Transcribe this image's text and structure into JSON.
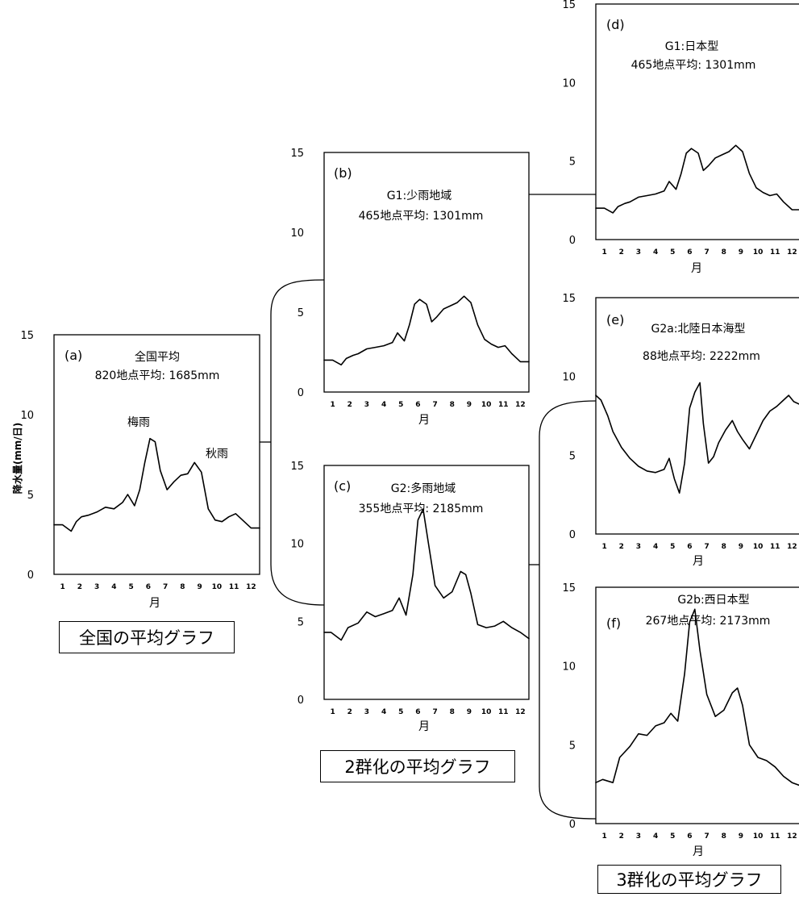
{
  "y_axis_label": "降水量(mm/日)",
  "captions": {
    "all": "全国の平均グラフ",
    "two": "2群化の平均グラフ",
    "three": "3群化の平均グラフ"
  },
  "chart_data": [
    {
      "id": "a",
      "type": "line",
      "letter": "(a)",
      "title": "全国平均",
      "subtitle": "820地点平均: 1685mm",
      "xlabel": "月",
      "ylabel": "降水量(mm/日)",
      "x_ticks": [
        "1",
        "2",
        "3",
        "4",
        "5",
        "6",
        "7",
        "8",
        "9",
        "10",
        "11",
        "12"
      ],
      "xlim": [
        1,
        13
      ],
      "ylim": [
        0,
        15
      ],
      "y_ticks": [
        0,
        5,
        10,
        15
      ],
      "annotations": [
        {
          "text": "梅雨"
        },
        {
          "text": "秋雨"
        }
      ],
      "series": [
        {
          "x": [
            1,
            1.5,
            2,
            2.3,
            2.6,
            3,
            3.5,
            4,
            4.5,
            5,
            5.3,
            5.7,
            6,
            6.3,
            6.6,
            6.9,
            7.2,
            7.6,
            8,
            8.4,
            8.8,
            9.2,
            9.6,
            10,
            10.4,
            10.8,
            11.2,
            11.6,
            12,
            12.5,
            13
          ],
          "y": [
            3.1,
            3.1,
            2.7,
            3.3,
            3.6,
            3.7,
            3.9,
            4.2,
            4.1,
            4.5,
            5.0,
            4.3,
            5.3,
            7.0,
            8.5,
            8.3,
            6.5,
            5.3,
            5.8,
            6.2,
            6.3,
            7.0,
            6.4,
            4.1,
            3.4,
            3.3,
            3.6,
            3.8,
            3.4,
            2.9,
            2.9
          ]
        }
      ]
    },
    {
      "id": "b",
      "type": "line",
      "letter": "(b)",
      "title": "G1:少雨地域",
      "subtitle": "465地点平均: 1301mm",
      "xlabel": "月",
      "x_ticks": [
        "1",
        "2",
        "3",
        "4",
        "5",
        "6",
        "7",
        "8",
        "9",
        "10",
        "11",
        "12"
      ],
      "xlim": [
        1,
        13
      ],
      "ylim": [
        0,
        15
      ],
      "y_ticks": [
        0,
        5,
        10,
        15
      ],
      "series": [
        {
          "x": [
            1,
            1.5,
            2,
            2.3,
            2.7,
            3,
            3.5,
            4,
            4.5,
            5,
            5.3,
            5.7,
            6,
            6.3,
            6.6,
            7,
            7.3,
            7.6,
            8,
            8.4,
            8.8,
            9.2,
            9.6,
            10,
            10.4,
            10.8,
            11.2,
            11.6,
            12,
            12.5,
            13
          ],
          "y": [
            2.0,
            2.0,
            1.7,
            2.1,
            2.3,
            2.4,
            2.7,
            2.8,
            2.9,
            3.1,
            3.7,
            3.2,
            4.2,
            5.5,
            5.8,
            5.5,
            4.4,
            4.7,
            5.2,
            5.4,
            5.6,
            6.0,
            5.6,
            4.2,
            3.3,
            3.0,
            2.8,
            2.9,
            2.4,
            1.9,
            1.9
          ]
        }
      ]
    },
    {
      "id": "c",
      "type": "line",
      "letter": "(c)",
      "title": "G2:多雨地域",
      "subtitle": "355地点平均: 2185mm",
      "xlabel": "月",
      "x_ticks": [
        "1",
        "2",
        "3",
        "4",
        "5",
        "6",
        "7",
        "8",
        "9",
        "10",
        "11",
        "12"
      ],
      "xlim": [
        1,
        13
      ],
      "ylim": [
        0,
        15
      ],
      "y_ticks": [
        0,
        5,
        10,
        15
      ],
      "series": [
        {
          "x": [
            1,
            1.4,
            2,
            2.4,
            3,
            3.5,
            4,
            4.5,
            5,
            5.4,
            5.8,
            6.2,
            6.5,
            6.8,
            7.1,
            7.5,
            8,
            8.5,
            9,
            9.3,
            9.6,
            10,
            10.5,
            11,
            11.5,
            12,
            12.5,
            13
          ],
          "y": [
            4.3,
            4.3,
            3.8,
            4.6,
            4.9,
            5.6,
            5.3,
            5.5,
            5.7,
            6.5,
            5.4,
            8.0,
            11.5,
            12.2,
            10.1,
            7.3,
            6.5,
            6.9,
            8.2,
            8.0,
            6.8,
            4.8,
            4.6,
            4.7,
            5.0,
            4.6,
            4.3,
            3.9
          ]
        }
      ]
    },
    {
      "id": "d",
      "type": "line",
      "letter": "(d)",
      "title": "G1:日本型",
      "subtitle": "465地点平均: 1301mm",
      "xlabel": "月",
      "x_ticks": [
        "1",
        "2",
        "3",
        "4",
        "5",
        "6",
        "7",
        "8",
        "9",
        "10",
        "11",
        "12"
      ],
      "xlim": [
        1,
        13
      ],
      "ylim": [
        0,
        15
      ],
      "y_ticks": [
        0,
        5,
        10,
        15
      ],
      "series": [
        {
          "x": [
            1,
            1.5,
            2,
            2.3,
            2.7,
            3,
            3.5,
            4,
            4.5,
            5,
            5.3,
            5.7,
            6,
            6.3,
            6.6,
            7,
            7.3,
            7.6,
            8,
            8.4,
            8.8,
            9.2,
            9.6,
            10,
            10.4,
            10.8,
            11.2,
            11.6,
            12,
            12.5,
            13
          ],
          "y": [
            2.0,
            2.0,
            1.7,
            2.1,
            2.3,
            2.4,
            2.7,
            2.8,
            2.9,
            3.1,
            3.7,
            3.2,
            4.2,
            5.5,
            5.8,
            5.5,
            4.4,
            4.7,
            5.2,
            5.4,
            5.6,
            6.0,
            5.6,
            4.2,
            3.3,
            3.0,
            2.8,
            2.9,
            2.4,
            1.9,
            1.9
          ]
        }
      ]
    },
    {
      "id": "e",
      "type": "line",
      "letter": "(e)",
      "title": "G2a:北陸日本海型",
      "subtitle": "88地点平均: 2222mm",
      "xlabel": "月",
      "x_ticks": [
        "1",
        "2",
        "3",
        "4",
        "5",
        "6",
        "7",
        "8",
        "9",
        "10",
        "11",
        "12"
      ],
      "xlim": [
        1,
        13
      ],
      "ylim": [
        0,
        15
      ],
      "y_ticks": [
        0,
        5,
        10,
        15
      ],
      "series": [
        {
          "x": [
            1,
            1.3,
            1.7,
            2,
            2.5,
            3,
            3.5,
            4,
            4.5,
            5,
            5.3,
            5.6,
            5.9,
            6.2,
            6.5,
            6.8,
            7.1,
            7.3,
            7.6,
            7.9,
            8.2,
            8.6,
            9,
            9.3,
            9.6,
            10,
            10.4,
            10.8,
            11.2,
            11.6,
            12,
            12.3,
            12.6,
            13
          ],
          "y": [
            8.8,
            8.5,
            7.5,
            6.5,
            5.5,
            4.8,
            4.3,
            4.0,
            3.9,
            4.1,
            4.8,
            3.5,
            2.6,
            4.5,
            8.0,
            9.0,
            9.6,
            7.0,
            4.5,
            4.9,
            5.8,
            6.6,
            7.2,
            6.5,
            6.0,
            5.4,
            6.3,
            7.2,
            7.8,
            8.1,
            8.5,
            8.8,
            8.4,
            8.2
          ]
        }
      ]
    },
    {
      "id": "f",
      "type": "line",
      "letter": "(f)",
      "title": "G2b:西日本型",
      "subtitle": "267地点平均: 2173mm",
      "xlabel": "月",
      "x_ticks": [
        "1",
        "2",
        "3",
        "4",
        "5",
        "6",
        "7",
        "8",
        "9",
        "10",
        "11",
        "12"
      ],
      "xlim": [
        1,
        13
      ],
      "ylim": [
        0,
        15
      ],
      "y_ticks": [
        0,
        5,
        10,
        15
      ],
      "series": [
        {
          "x": [
            1,
            1.4,
            2,
            2.4,
            3,
            3.5,
            4,
            4.5,
            5,
            5.4,
            5.8,
            6.2,
            6.5,
            6.8,
            7.1,
            7.5,
            8,
            8.5,
            9,
            9.3,
            9.6,
            10,
            10.5,
            11,
            11.5,
            12,
            12.5,
            13
          ],
          "y": [
            2.6,
            2.8,
            2.6,
            4.2,
            4.9,
            5.7,
            5.6,
            6.2,
            6.4,
            7.0,
            6.5,
            9.5,
            12.8,
            13.6,
            11.0,
            8.2,
            6.8,
            7.2,
            8.3,
            8.6,
            7.5,
            5.0,
            4.2,
            4.0,
            3.6,
            3.0,
            2.6,
            2.4
          ]
        }
      ]
    }
  ]
}
